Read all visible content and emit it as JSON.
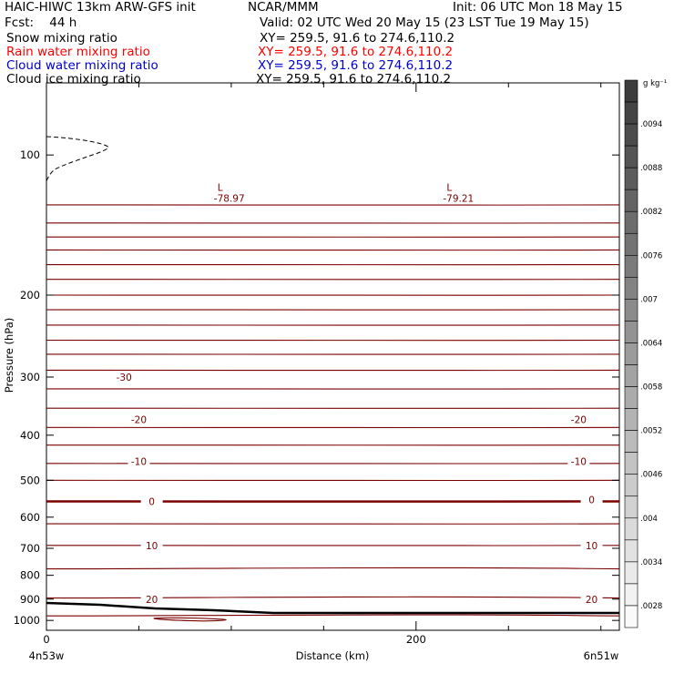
{
  "header": {
    "title_left": "HAIC-HIWC 13km ARW-GFS init",
    "center_org": "NCAR/MMM",
    "init": "Init: 06 UTC Mon 18 May 15",
    "fcst": "Fcst:    44 h",
    "valid": "Valid: 02 UTC Wed 20 May 15 (23 LST Tue 19 May 15)",
    "fields": [
      {
        "name": "Snow mixing ratio",
        "xy": "XY= 259.5, 91.6 to 274.6,110.2",
        "color": "#000000"
      },
      {
        "name": "Rain water mixing ratio",
        "xy": "XY= 259.5, 91.6 to 274.6,110.2",
        "color": "#ff0000"
      },
      {
        "name": "Cloud water mixing ratio",
        "xy": "XY= 259.5, 91.6 to 274.6,110.2",
        "color": "#0000cc"
      },
      {
        "name": "Cloud ice mixing ratio",
        "xy": "XY= 259.5, 91.6 to 274.6,110.2",
        "color": "#000000"
      }
    ]
  },
  "chart_data": {
    "type": "line",
    "title": "Snow mixing ratio / Rain water / Cloud water / Cloud ice mixing ratio cross section",
    "xlabel": "Distance (km)",
    "ylabel": "Pressure (hPa)",
    "xlim": [
      0,
      310
    ],
    "ylim": [
      1050,
      70
    ],
    "y_scale": "log",
    "x_ticks": [
      "0",
      "200"
    ],
    "x_endpoints": {
      "left": "4n53w",
      "right": "6n51w"
    },
    "y_ticks": [
      "100",
      "200",
      "300",
      "400",
      "500",
      "600",
      "700",
      "800",
      "900",
      "1000"
    ],
    "temperature_contours": {
      "color": "#7a0000",
      "labels": [
        {
          "text": "-30",
          "x": 42,
          "p": 300
        },
        {
          "text": "-20",
          "x": 50,
          "p": 370
        },
        {
          "text": "-20",
          "x": 288,
          "p": 370
        },
        {
          "text": "-10",
          "x": 50,
          "p": 455
        },
        {
          "text": "-10",
          "x": 288,
          "p": 455
        },
        {
          "text": "0",
          "x": 57,
          "p": 555
        },
        {
          "text": "0",
          "x": 295,
          "p": 550
        },
        {
          "text": "10",
          "x": 57,
          "p": 690
        },
        {
          "text": "10",
          "x": 295,
          "p": 690
        },
        {
          "text": "20",
          "x": 57,
          "p": 900
        },
        {
          "text": "20",
          "x": 295,
          "p": 900
        }
      ],
      "minima": [
        {
          "mark": "L",
          "value": "-78.97",
          "x": 94,
          "p": 120
        },
        {
          "mark": "L",
          "value": "-79.21",
          "x": 218,
          "p": 120
        }
      ]
    },
    "colorbar": {
      "units": "g kg⁻¹",
      "labels": [
        ".0094",
        ".0088",
        ".0082",
        ".0076",
        ".007",
        ".0064",
        ".0058",
        ".0052",
        ".0046",
        ".004",
        ".0034",
        ".0028"
      ]
    }
  }
}
